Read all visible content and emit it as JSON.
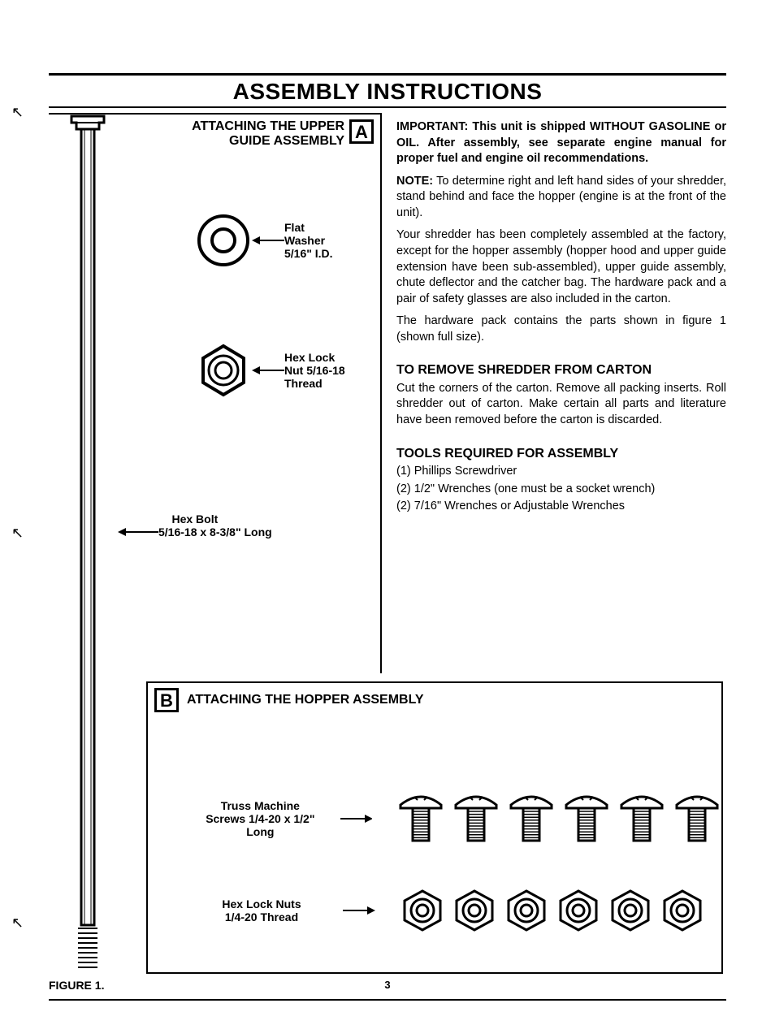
{
  "title": "ASSEMBLY INSTRUCTIONS",
  "sectionA": {
    "letter": "A",
    "heading_line1": "ATTACHING THE UPPER",
    "heading_line2": "GUIDE ASSEMBLY",
    "washer_label_l1": "Flat",
    "washer_label_l2": "Washer",
    "washer_label_l3": "5/16\" I.D.",
    "nut_label_l1": "Hex Lock",
    "nut_label_l2": "Nut 5/16-18",
    "nut_label_l3": "Thread",
    "bolt_label_l1": "Hex Bolt",
    "bolt_label_l2": "5/16-18 x 8-3/8\" Long"
  },
  "sectionB": {
    "letter": "B",
    "heading": "ATTACHING THE HOPPER ASSEMBLY",
    "screw_label_l1": "Truss Machine",
    "screw_label_l2": "Screws 1/4-20 x 1/2\"",
    "screw_label_l3": "Long",
    "nut_label_l1": "Hex Lock Nuts",
    "nut_label_l2": "1/4-20 Thread",
    "screw_count": 6,
    "nut_count": 6
  },
  "rightCol": {
    "important_lead": "IMPORTANT: This unit is shipped WITHOUT GASOLINE or OIL. After assembly, see separate engine manual for proper fuel and engine oil recommendations.",
    "note_lead": "NOTE:",
    "note_body": " To determine right and left hand sides of your shredder, stand behind and face the hopper (engine is at the front of the unit).",
    "p1": "Your shredder has been completely assembled at the factory, except for the hopper assembly (hopper hood and upper guide extension have been sub-assembled), upper guide assembly, chute deflector and the catcher bag. The hardware pack and a pair of safety glasses are also included in the carton.",
    "p2": "The hardware pack contains the parts shown in figure 1 (shown full size).",
    "remove_head": "TO REMOVE SHREDDER FROM CARTON",
    "remove_body": "Cut the corners of the carton. Remove all packing inserts. Roll shredder out of carton. Make certain all parts and literature have been removed before the carton is discarded.",
    "tools_head": "TOOLS REQUIRED FOR ASSEMBLY",
    "tool1": "(1)  Phillips Screwdriver",
    "tool2": "(2)  1/2\" Wrenches (one must be a socket wrench)",
    "tool3": "(2)  7/16\" Wrenches or Adjustable Wrenches"
  },
  "figure_label": "FIGURE 1.",
  "page_number": "3",
  "style": {
    "stroke": "#000000",
    "fill_white": "#ffffff",
    "screw_hatch": "#000000"
  }
}
